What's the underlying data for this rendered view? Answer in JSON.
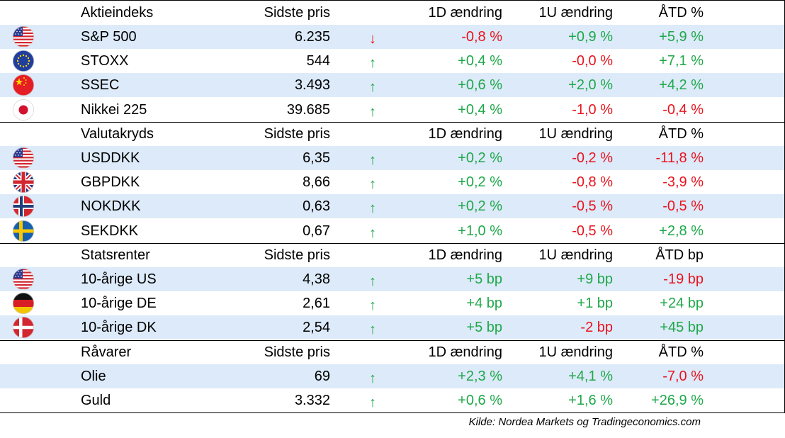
{
  "sections": [
    {
      "header": {
        "name": "Aktieindeks",
        "price": "Sidste pris",
        "d1": "1D ændring",
        "w1": "1U ændring",
        "ytd": "ÅTD %"
      },
      "rows": [
        {
          "flag": "us-flag-icon",
          "name": "S&P 500",
          "price": "6.235",
          "arrow": "down",
          "d1": "-0,8 %",
          "w1": "+0,9 %",
          "ytd": "+5,9 %"
        },
        {
          "flag": "eu-flag-icon",
          "name": "STOXX",
          "price": "544",
          "arrow": "up",
          "d1": "+0,4 %",
          "w1": "-0,0 %",
          "ytd": "+7,1 %"
        },
        {
          "flag": "china-flag-icon",
          "name": "SSEC",
          "price": "3.493",
          "arrow": "up",
          "d1": "+0,6 %",
          "w1": "+2,0 %",
          "ytd": "+4,2 %"
        },
        {
          "flag": "japan-flag-icon",
          "name": "Nikkei 225",
          "price": "39.685",
          "arrow": "up",
          "d1": "+0,4 %",
          "w1": "-1,0 %",
          "ytd": "-0,4 %"
        }
      ]
    },
    {
      "header": {
        "name": "Valutakryds",
        "price": "Sidste pris",
        "d1": "1D ændring",
        "w1": "1U ændring",
        "ytd": "ÅTD %"
      },
      "rows": [
        {
          "flag": "us-flag-icon",
          "name": "USDDKK",
          "price": "6,35",
          "arrow": "up",
          "d1": "+0,2 %",
          "w1": "-0,2 %",
          "ytd": "-11,8 %"
        },
        {
          "flag": "uk-flag-icon",
          "name": "GBPDKK",
          "price": "8,66",
          "arrow": "up",
          "d1": "+0,2 %",
          "w1": "-0,8 %",
          "ytd": "-3,9 %"
        },
        {
          "flag": "norway-flag-icon",
          "name": "NOKDKK",
          "price": "0,63",
          "arrow": "up",
          "d1": "+0,2 %",
          "w1": "-0,5 %",
          "ytd": "-0,5 %"
        },
        {
          "flag": "sweden-flag-icon",
          "name": "SEKDKK",
          "price": "0,67",
          "arrow": "up",
          "d1": "+1,0 %",
          "w1": "-0,5 %",
          "ytd": "+2,8 %"
        }
      ]
    },
    {
      "header": {
        "name": "Statsrenter",
        "price": "Sidste pris",
        "d1": "1D ændring",
        "w1": "1U ændring",
        "ytd": "ÅTD bp"
      },
      "rows": [
        {
          "flag": "us-flag-icon",
          "name": "10-årige US",
          "price": "4,38",
          "arrow": "up",
          "d1": "+5 bp",
          "w1": "+9 bp",
          "ytd": "-19 bp"
        },
        {
          "flag": "germany-flag-icon",
          "name": "10-årige DE",
          "price": "2,61",
          "arrow": "up",
          "d1": "+4 bp",
          "w1": "+1 bp",
          "ytd": "+24 bp"
        },
        {
          "flag": "denmark-flag-icon",
          "name": "10-årige DK",
          "price": "2,54",
          "arrow": "up",
          "d1": "+5 bp",
          "w1": "-2 bp",
          "ytd": "+45 bp"
        }
      ]
    },
    {
      "header": {
        "name": "Råvarer",
        "price": "Sidste pris",
        "d1": "1D ændring",
        "w1": "1U ændring",
        "ytd": "ÅTD %"
      },
      "rows": [
        {
          "flag": "",
          "name": "Olie",
          "price": "69",
          "arrow": "up",
          "d1": "+2,3 %",
          "w1": "+4,1 %",
          "ytd": "-7,0 %"
        },
        {
          "flag": "",
          "name": "Guld",
          "price": "3.332",
          "arrow": "up",
          "d1": "+0,6 %",
          "w1": "+1,6 %",
          "ytd": "+26,9 %"
        }
      ]
    }
  ],
  "arrows": {
    "up": "↑",
    "down": "↓"
  },
  "colors": {
    "positive": "#1fa84a",
    "negative": "#e8141e",
    "row_shade": "#ddeaf9"
  },
  "source": "Kilde: Nordea Markets og Tradingeconomics.com"
}
